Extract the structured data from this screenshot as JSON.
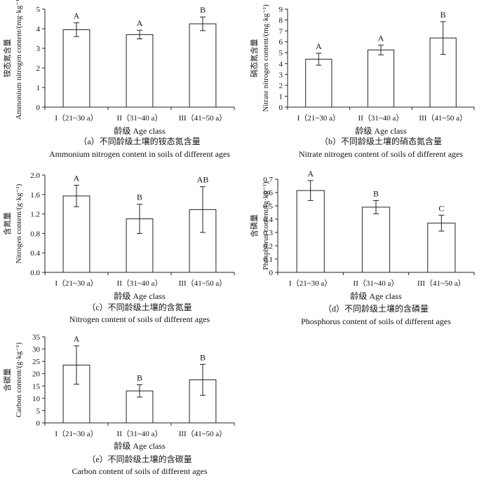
{
  "chart_data": [
    {
      "type": "bar",
      "panel": "a",
      "ylabel_cn": "铵态氮含量",
      "ylabel": "Ammonium nitrogen content/(mg·kg⁻¹)",
      "xlabel": "龄级 Age class",
      "caption_cn": "（a）不同龄级土壤的铵态氮含量",
      "caption_en": "Ammonium nitrogen content in soils of different ages",
      "categories": [
        "I（21~30 a）",
        "II（31~40 a）",
        "III（41~50 a）"
      ],
      "values": [
        3.95,
        3.7,
        4.25
      ],
      "errors": [
        0.35,
        0.22,
        0.35
      ],
      "labels": [
        "A",
        "A",
        "B"
      ],
      "ylim": [
        0,
        5
      ],
      "yticks": [
        0,
        1,
        2,
        3,
        4,
        5
      ],
      "ytick_labels": [
        "0",
        "1",
        "2",
        "3",
        "4",
        "5"
      ]
    },
    {
      "type": "bar",
      "panel": "b",
      "ylabel_cn": "硝态氮含量",
      "ylabel": "Nitrate nitrogen content/(mg·kg⁻¹)",
      "xlabel": "龄级 Age class",
      "caption_cn": "（b）不同龄级土壤的硝态氮含量",
      "caption_en": "Nitrate nitrogen content of soils of different ages",
      "categories": [
        "I（21~30 a）",
        "II（31~40 a）",
        "III（41~50 a）"
      ],
      "values": [
        4.4,
        5.25,
        6.35
      ],
      "errors": [
        0.55,
        0.45,
        1.5
      ],
      "labels": [
        "A",
        "A",
        "B"
      ],
      "ylim": [
        0,
        9
      ],
      "yticks": [
        0,
        1,
        2,
        3,
        4,
        5,
        6,
        7,
        8,
        9
      ],
      "ytick_labels": [
        "0",
        "1",
        "2",
        "3",
        "4",
        "5",
        "6",
        "7",
        "8",
        "9"
      ]
    },
    {
      "type": "bar",
      "panel": "c",
      "ylabel_cn": "含氮量",
      "ylabel": "Nitrogen content/(g·kg⁻¹)",
      "xlabel": "龄级 Age class",
      "caption_cn": "（c）不同龄级土壤的含氮量",
      "caption_en": "Nitrogen content of soils of different ages",
      "categories": [
        "I（21~30 a）",
        "II（31~40 a）",
        "III（41~50 a）"
      ],
      "values": [
        1.57,
        1.1,
        1.29
      ],
      "errors": [
        0.22,
        0.3,
        0.47
      ],
      "labels": [
        "A",
        "B",
        "AB"
      ],
      "ylim": [
        0,
        2.0
      ],
      "yticks": [
        0,
        0.4,
        0.8,
        1.2,
        1.6,
        2.0
      ],
      "ytick_labels": [
        "0.0",
        "0.4",
        "0.8",
        "1.2",
        "1.6",
        "2.0"
      ]
    },
    {
      "type": "bar",
      "panel": "d",
      "ylabel_cn": "含磷量",
      "ylabel": "Phosphorus content/(g·kg⁻¹)",
      "xlabel": "龄级 Age class",
      "caption_cn": "（d）不同龄级土壤的含磷量",
      "caption_en": "Phosphorus content of soils of different ages",
      "categories": [
        "I（21~30 a）",
        "II（31~40 a）",
        "III（41~50 a）"
      ],
      "values": [
        0.615,
        0.49,
        0.37
      ],
      "errors": [
        0.075,
        0.05,
        0.06
      ],
      "labels": [
        "A",
        "B",
        "C"
      ],
      "ylim": [
        0,
        0.7
      ],
      "yticks": [
        0,
        0.1,
        0.2,
        0.3,
        0.4,
        0.5,
        0.6,
        0.7
      ],
      "ytick_labels": [
        "0",
        "0.1",
        "0.2",
        "0.3",
        "0.4",
        "0.5",
        "0.6",
        "0.7"
      ]
    },
    {
      "type": "bar",
      "panel": "e",
      "ylabel_cn": "含碳量",
      "ylabel": "Carbon content/(g·kg⁻¹)",
      "xlabel": "龄级 Age class",
      "caption_cn": "（e）不同龄级土壤的含碳量",
      "caption_en": "Carbon content of soils of different ages",
      "categories": [
        "I（21~30 a）",
        "II（31~40 a）",
        "III（41~50 a）"
      ],
      "values": [
        23.5,
        13.0,
        17.5
      ],
      "errors": [
        7.8,
        2.5,
        6.3
      ],
      "labels": [
        "A",
        "B",
        "B"
      ],
      "ylim": [
        0,
        35
      ],
      "yticks": [
        0,
        5,
        10,
        15,
        20,
        25,
        30,
        35
      ],
      "ytick_labels": [
        "0",
        "5",
        "10",
        "15",
        "20",
        "25",
        "30",
        "35"
      ]
    }
  ]
}
